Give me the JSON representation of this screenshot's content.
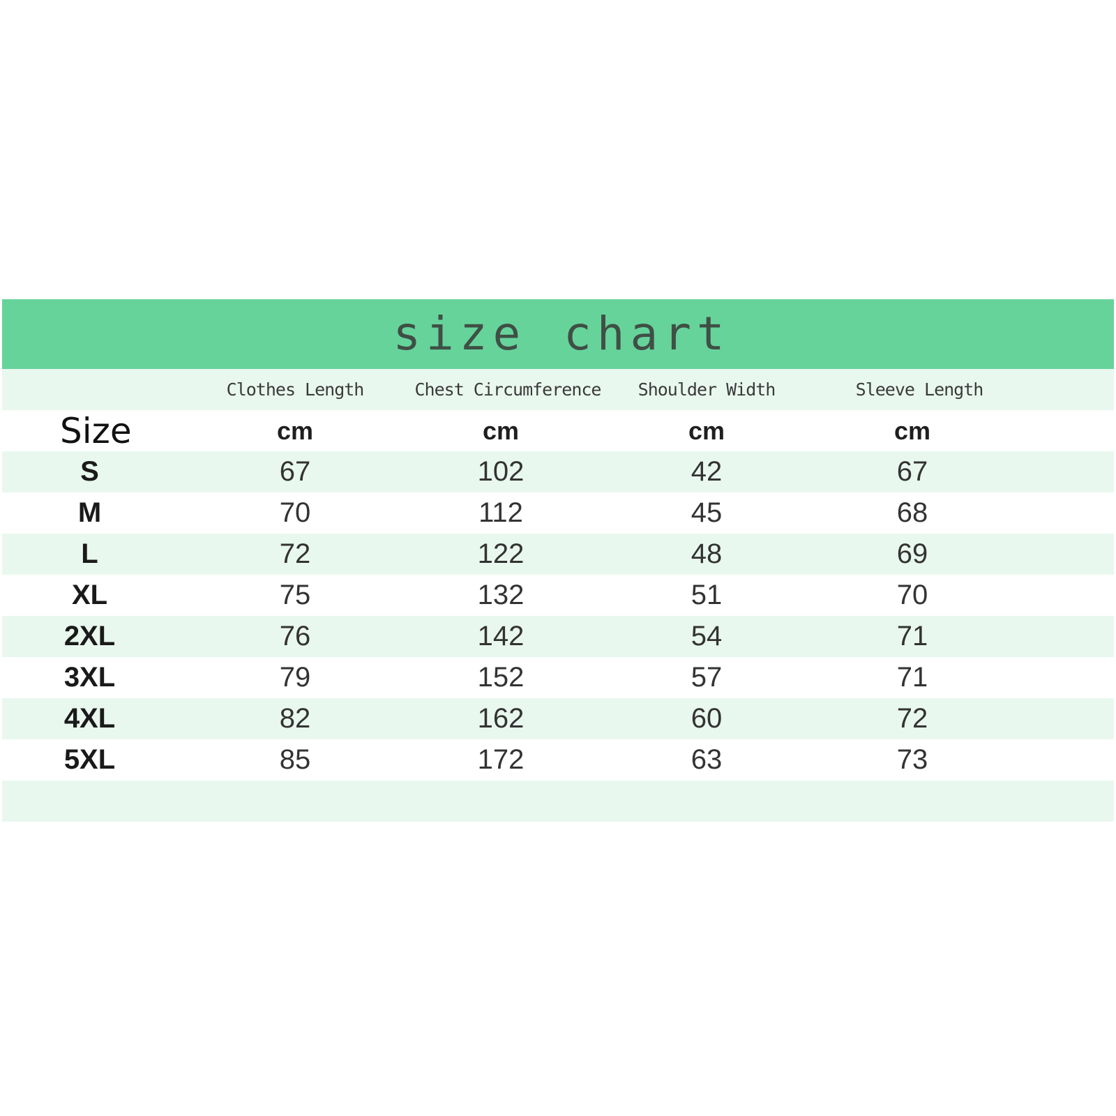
{
  "title": "size chart",
  "column_headers": [
    "Clothes Length",
    "Chest Circumference",
    "Shoulder Width",
    "Sleeve Length"
  ],
  "size_label": "Size",
  "unit": "cm",
  "rows": [
    {
      "size": "S",
      "values": [
        "67",
        "102",
        "42",
        "67"
      ]
    },
    {
      "size": "M",
      "values": [
        "70",
        "112",
        "45",
        "68"
      ]
    },
    {
      "size": "L",
      "values": [
        "72",
        "122",
        "48",
        "69"
      ]
    },
    {
      "size": "XL",
      "values": [
        "75",
        "132",
        "51",
        "70"
      ]
    },
    {
      "size": "2XL",
      "values": [
        "76",
        "142",
        "54",
        "71"
      ]
    },
    {
      "size": "3XL",
      "values": [
        "79",
        "152",
        "57",
        "71"
      ]
    },
    {
      "size": "4XL",
      "values": [
        "82",
        "162",
        "60",
        "72"
      ]
    },
    {
      "size": "5XL",
      "values": [
        "85",
        "172",
        "63",
        "73"
      ]
    }
  ],
  "colors": {
    "title_bar": "#66d39b",
    "row_tint": "#e9f8ef",
    "title_text": "#3f4f45"
  }
}
